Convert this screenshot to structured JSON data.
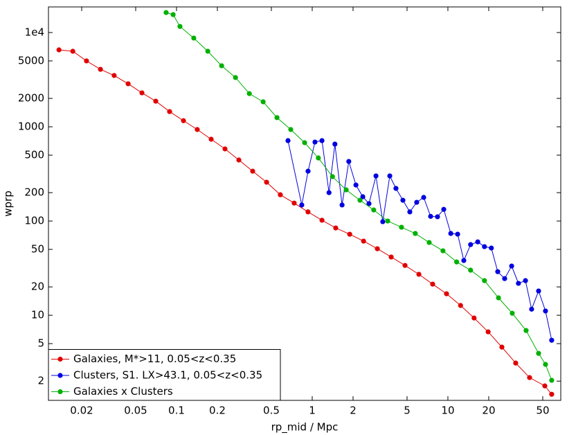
{
  "chart_data": {
    "type": "line",
    "x_label": "rp_mid / Mpc",
    "y_label": "wprp",
    "log_x": true,
    "log_y": true,
    "grid": false,
    "legend_position": "lower left",
    "xlim": [
      0.01138,
      67.9
    ],
    "ylim": [
      1.25,
      18700
    ],
    "xticks": [
      0.02,
      0.05,
      0.1,
      0.2,
      0.5,
      1,
      2,
      5,
      10,
      20,
      50
    ],
    "yticks": [
      2,
      5,
      10,
      20,
      50,
      100,
      200,
      500,
      1000,
      2000,
      5000,
      {
        "value": 10000,
        "label": "1e4"
      }
    ],
    "series": [
      {
        "name": "Galaxies, M*>11, 0.05<z<0.35",
        "color": "#e00000",
        "x": [
          0.0136,
          0.0172,
          0.0217,
          0.0275,
          0.0347,
          0.044,
          0.0556,
          0.0703,
          0.0889,
          0.1125,
          0.1422,
          0.18,
          0.2277,
          0.288,
          0.364,
          0.461,
          0.582,
          0.736,
          0.931,
          1.18,
          1.49,
          1.89,
          2.39,
          3.02,
          3.82,
          4.83,
          6.11,
          7.72,
          9.77,
          12.4,
          15.6,
          19.8,
          25.0,
          31.6,
          40.0,
          51.8,
          58.2
        ],
        "values": [
          6550,
          6330,
          5000,
          4070,
          3500,
          2860,
          2290,
          1870,
          1450,
          1160,
          935,
          738,
          582,
          444,
          338,
          258,
          190,
          155,
          125,
          102,
          84.4,
          72.4,
          61.2,
          50.8,
          41.5,
          33.8,
          27.2,
          21.4,
          16.9,
          12.7,
          9.35,
          6.67,
          4.59,
          3.11,
          2.18,
          1.78,
          1.45
        ]
      },
      {
        "name": "Clusters, S1. LX>43.1, 0.05<z<0.35",
        "color": "#0000e0",
        "x": [
          0.663,
          0.838,
          0.932,
          1.048,
          1.18,
          1.33,
          1.47,
          1.66,
          1.86,
          2.1,
          2.36,
          2.62,
          2.95,
          3.31,
          3.73,
          4.14,
          4.66,
          5.24,
          5.89,
          6.63,
          7.46,
          8.38,
          9.32,
          10.5,
          11.8,
          13.1,
          14.7,
          16.6,
          18.6,
          20.9,
          23.3,
          26.2,
          29.5,
          33.1,
          37.3,
          41.4,
          46.6,
          52.4,
          58.2
        ],
        "values": [
          713,
          148,
          338,
          689,
          713,
          200,
          655,
          148,
          429,
          241,
          181,
          153,
          301,
          98.4,
          301,
          222,
          166,
          125,
          158,
          178,
          112,
          111,
          133,
          73.8,
          72.5,
          38.1,
          56.2,
          60.1,
          53.5,
          51.7,
          29.0,
          24.5,
          33.3,
          21.8,
          23.3,
          11.6,
          18.1,
          11.1,
          5.43
        ]
      },
      {
        "name": "Galaxies x Clusters",
        "color": "#00b000",
        "x": [
          0.0838,
          0.0944,
          0.106,
          0.134,
          0.17,
          0.215,
          0.272,
          0.344,
          0.435,
          0.55,
          0.695,
          0.879,
          1.11,
          1.41,
          1.78,
          2.25,
          2.84,
          3.6,
          4.55,
          5.75,
          7.28,
          9.2,
          11.6,
          14.7,
          18.6,
          23.6,
          29.8,
          37.7,
          46.6,
          52.4,
          58.2
        ],
        "values": [
          16300,
          15500,
          11600,
          8730,
          6330,
          4440,
          3330,
          2250,
          1840,
          1250,
          935,
          678,
          467,
          296,
          214,
          166,
          131,
          100,
          85.9,
          73.8,
          59.2,
          48.3,
          36.8,
          30.1,
          23.3,
          15.3,
          10.5,
          6.89,
          3.94,
          3.01,
          2.04
        ]
      }
    ]
  }
}
